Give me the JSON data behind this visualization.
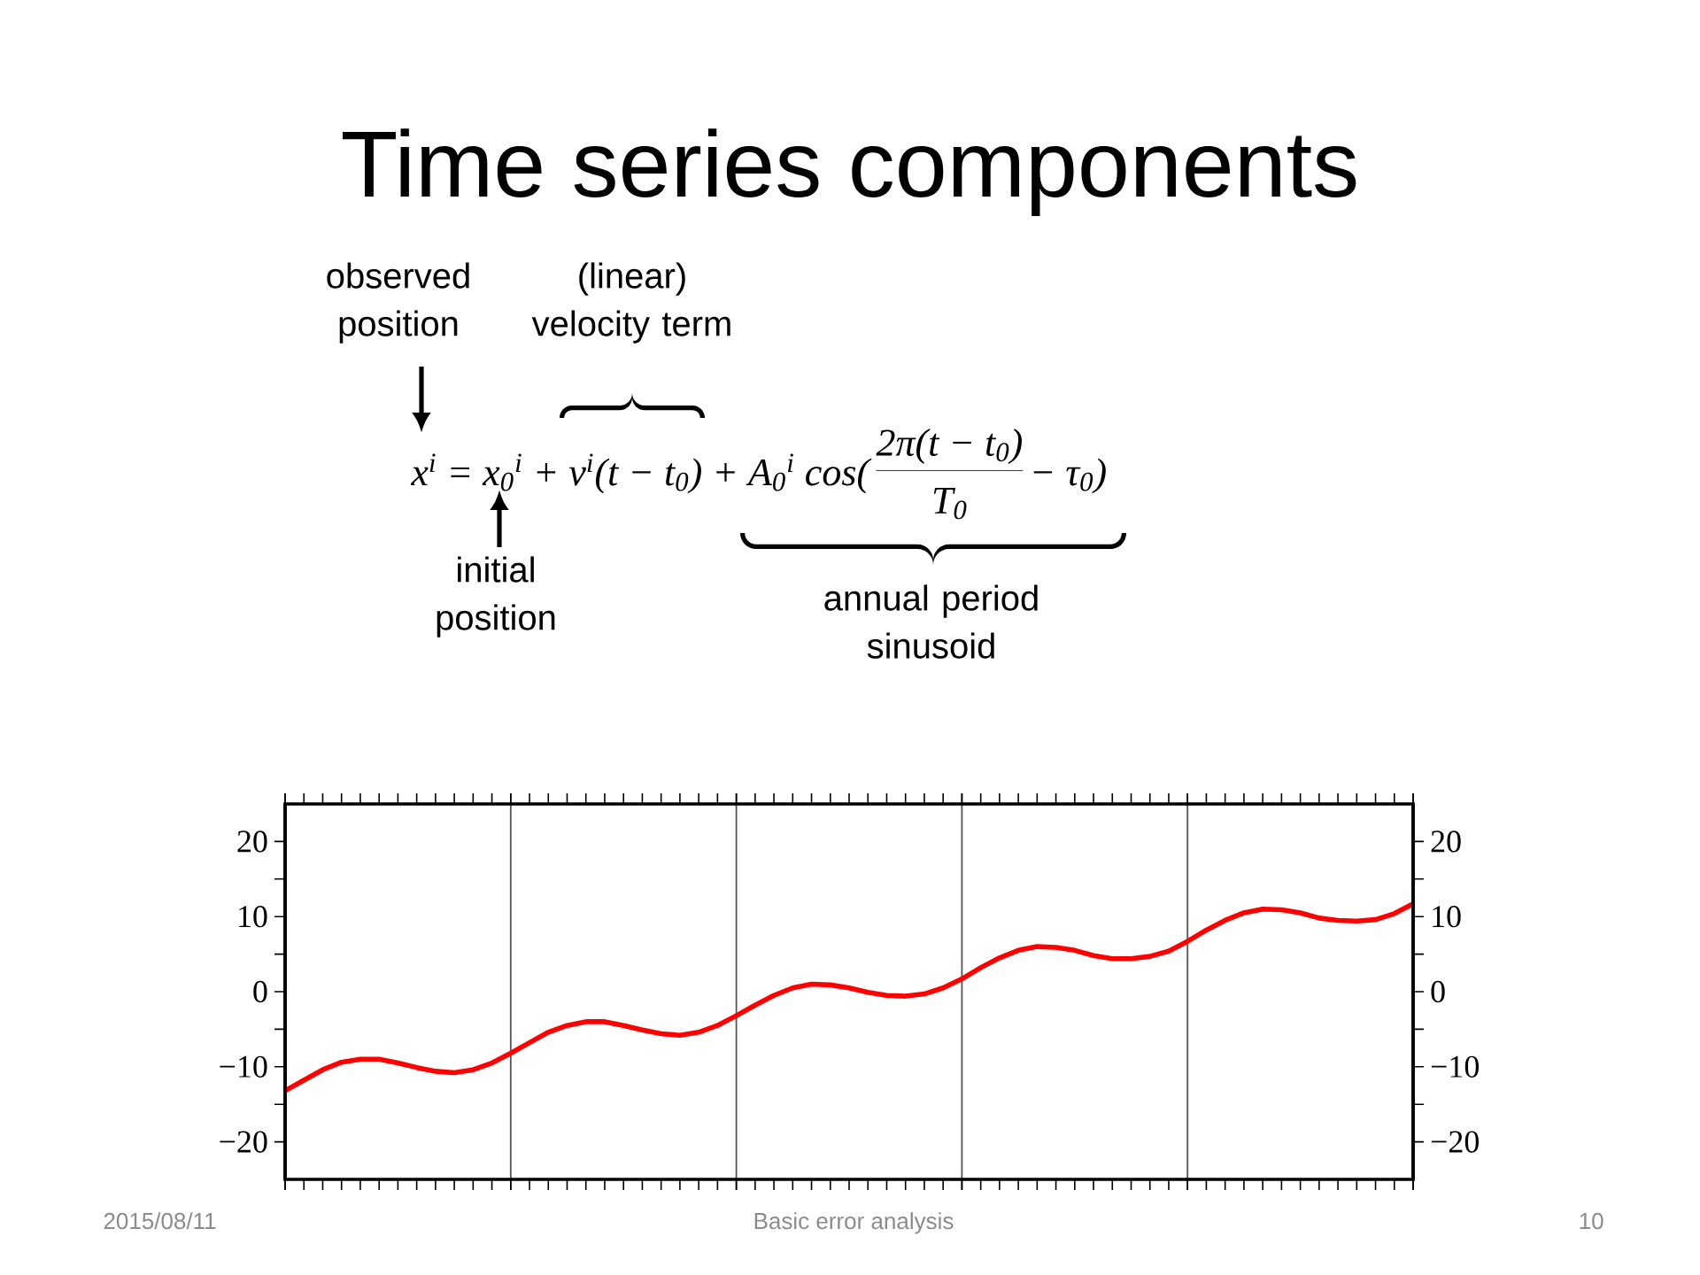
{
  "chart_data": {
    "type": "line",
    "title": "Time series components",
    "categories": [
      null,
      null,
      null,
      null,
      null,
      null,
      null,
      null,
      null,
      null,
      null,
      null,
      null,
      null,
      null,
      null,
      null,
      null,
      null,
      null,
      null,
      null,
      null,
      null,
      null,
      null,
      null,
      null,
      null,
      null,
      null,
      null,
      null,
      null,
      null,
      null,
      null,
      null,
      null,
      null,
      null,
      null,
      null,
      null,
      null,
      null,
      null,
      null,
      null,
      null,
      null,
      null,
      null,
      null,
      null,
      null,
      null,
      null,
      null,
      null,
      null
    ],
    "series": [
      {
        "color": "#ff0000",
        "values": [
          -13.2,
          -11.8,
          -10.4,
          -9.4,
          -9.0,
          -9.0,
          -9.5,
          -10.1,
          -10.6,
          -10.8,
          -10.4,
          -9.5,
          -8.2,
          -6.8,
          -5.4,
          -4.5,
          -4.0,
          -4.0,
          -4.5,
          -5.1,
          -5.6,
          -5.8,
          -5.4,
          -4.5,
          -3.2,
          -1.8,
          -0.5,
          0.5,
          1.0,
          0.9,
          0.5,
          -0.1,
          -0.5,
          -0.6,
          -0.3,
          0.5,
          1.7,
          3.2,
          4.5,
          5.5,
          6.0,
          5.9,
          5.5,
          4.8,
          4.4,
          4.4,
          4.7,
          5.4,
          6.7,
          8.2,
          9.5,
          10.5,
          11.0,
          10.9,
          10.5,
          9.8,
          9.5,
          9.4,
          9.6,
          10.4,
          11.7
        ]
      }
    ],
    "ylim": [
      -25,
      25
    ],
    "yticks": [
      {
        "value": -20,
        "label": "−20"
      },
      {
        "value": -10,
        "label": "−10"
      },
      0,
      10,
      20
    ],
    "y2lim": [
      -25,
      25
    ],
    "y2ticks": [
      {
        "value": -20,
        "label": "−20"
      },
      {
        "value": -10,
        "label": "−10"
      },
      0,
      10,
      20
    ],
    "grid": "x",
    "annotations": [
      "observed position",
      "(linear) velocity term",
      "x$^{i}$ = x$_{0}$$^{i}$ + v$^{i}$(t − t$_{0}$) + A$_{0}$$^{i}$ cos(",
      "2π(t − t$_{0}$)",
      "T$_{0}$",
      "− τ$_{0}$)",
      "initial position",
      "annual period sinusoid",
      "2015/08/11",
      "Basic error analysis",
      "10"
    ]
  }
}
